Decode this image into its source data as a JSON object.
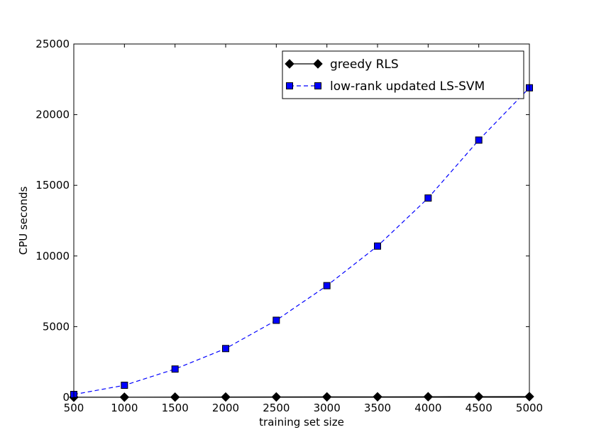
{
  "chart_data": {
    "type": "line",
    "title": "",
    "xlabel": "training set size",
    "ylabel": "CPU seconds",
    "xlim": [
      500,
      5000
    ],
    "ylim": [
      0,
      25000
    ],
    "x_ticks": [
      500,
      1000,
      1500,
      2000,
      2500,
      3000,
      3500,
      4000,
      4500,
      5000
    ],
    "y_ticks": [
      0,
      5000,
      10000,
      15000,
      20000,
      25000
    ],
    "grid": false,
    "legend_position": "top-right",
    "series": [
      {
        "name": "greedy RLS",
        "color": "#000000",
        "line_style": "solid",
        "marker": "diamond",
        "x": [
          500,
          1000,
          1500,
          2000,
          2500,
          3000,
          3500,
          4000,
          4500,
          5000
        ],
        "y": [
          5,
          10,
          15,
          20,
          25,
          30,
          35,
          40,
          45,
          50
        ]
      },
      {
        "name": "low-rank updated LS-SVM",
        "color": "#0000ff",
        "line_style": "dashed",
        "marker": "square",
        "x": [
          500,
          1000,
          1500,
          2000,
          2500,
          3000,
          3500,
          4000,
          4500,
          5000
        ],
        "y": [
          200,
          850,
          2000,
          3450,
          5450,
          7900,
          10700,
          14100,
          18200,
          21900
        ]
      }
    ]
  }
}
